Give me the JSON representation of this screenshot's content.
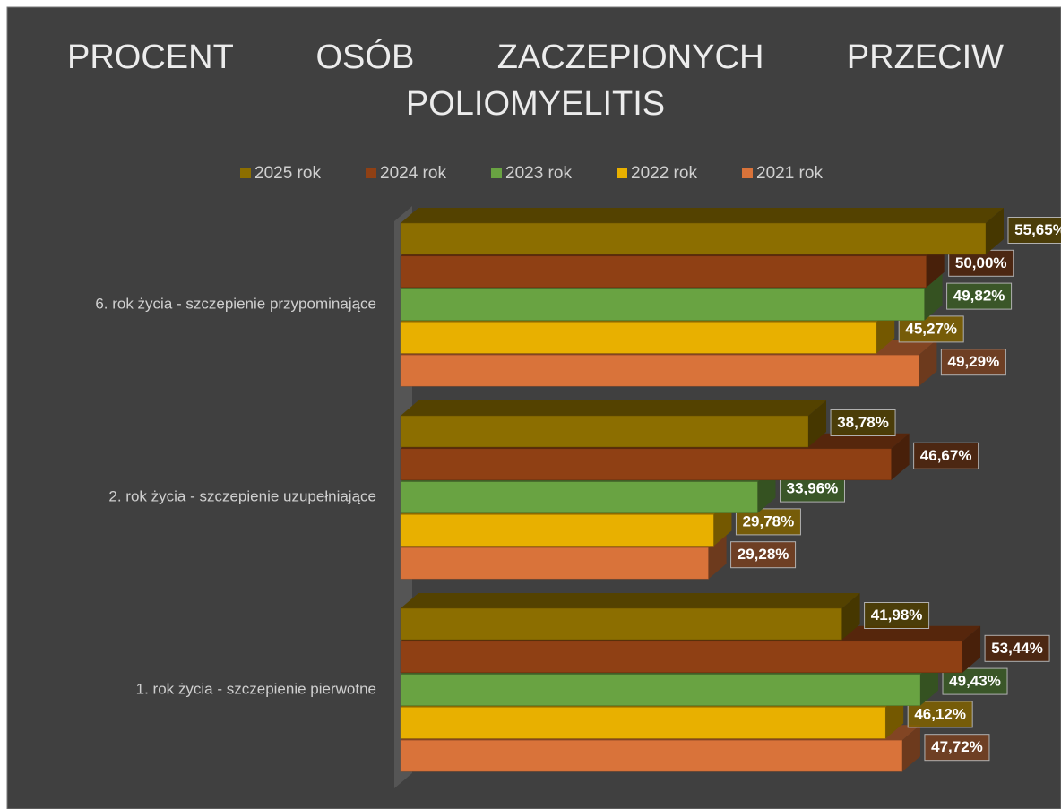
{
  "chart_data": {
    "type": "bar3d",
    "title": "PROCENT OSÓB ZACZEPIONYCH PRZECIW POLIOMYELITIS",
    "categories": [
      "6. rok życia - szczepienie przypominające",
      "2. rok życia - szczepienie uzupełniające",
      "1. rok życia - szczepienie pierwotne"
    ],
    "series": [
      {
        "name": "2025 rok",
        "color": "#8c6e00",
        "values": [
          55.65,
          38.78,
          41.98
        ],
        "value_labels": [
          "55,65%",
          "38,78%",
          "41,98%"
        ]
      },
      {
        "name": "2024 rok",
        "color": "#8f4014",
        "values": [
          50.0,
          46.67,
          53.44
        ],
        "value_labels": [
          "50,00%",
          "46,67%",
          "53,44%"
        ]
      },
      {
        "name": "2023 rok",
        "color": "#69a342",
        "values": [
          49.82,
          33.96,
          49.43
        ],
        "value_labels": [
          "49,82%",
          "33,96%",
          "49,43%"
        ]
      },
      {
        "name": "2022 rok",
        "color": "#e8b000",
        "values": [
          45.27,
          29.78,
          46.12
        ],
        "value_labels": [
          "45,27%",
          "29,78%",
          "46,12%"
        ]
      },
      {
        "name": "2021 rok",
        "color": "#d9733a",
        "values": [
          49.29,
          29.28,
          47.72
        ],
        "value_labels": [
          "49,29%",
          "29,28%",
          "47,72%"
        ]
      }
    ],
    "legend": "top"
  }
}
